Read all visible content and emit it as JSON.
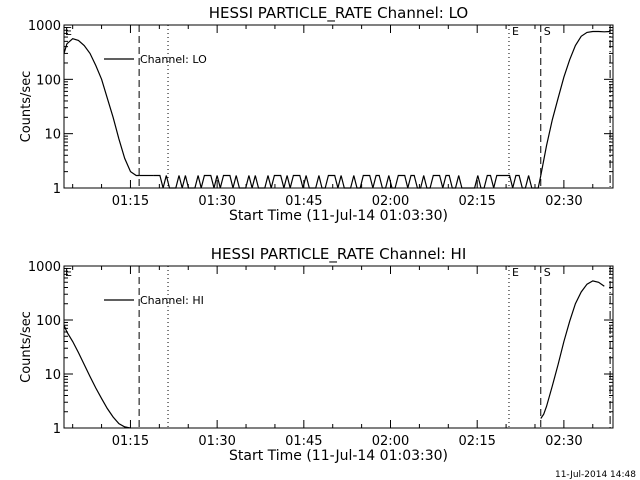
{
  "footer_timestamp": "11-Jul-2014 14:48",
  "chart_data": [
    {
      "type": "line",
      "title": "HESSI PARTICLE_RATE Channel: LO",
      "xlabel": "Start Time (11-Jul-14 01:03:30)",
      "ylabel": "Counts/sec",
      "yscale": "log",
      "ylim": [
        1,
        1000
      ],
      "xlim_minutes_after_midnight": [
        63.5,
        158.5
      ],
      "x_ticks": [
        "01:15",
        "01:30",
        "01:45",
        "02:00",
        "02:15",
        "02:30"
      ],
      "y_ticks": [
        "1",
        "10",
        "100",
        "1000"
      ],
      "legend": {
        "label": "Channel: LO",
        "placement": "top-left"
      },
      "markers": [
        {
          "label": "E",
          "time": "02:20.5",
          "style": "dotted"
        },
        {
          "label": "S",
          "time": "02:26",
          "style": "dashed"
        }
      ],
      "corner_marker": {
        "label": "E"
      },
      "vlines": [
        {
          "time": "01:16.5",
          "style": "dashed"
        },
        {
          "time": "01:21.5",
          "style": "dotted"
        },
        {
          "time": "02:20.5",
          "style": "dotted"
        },
        {
          "time": "02:26",
          "style": "dashed"
        },
        {
          "time": "02:38",
          "style": "dash-dot"
        }
      ],
      "series": [
        {
          "segments": [
            {
              "t": [
                63.5,
                64.0,
                65.0,
                66.0,
                67.0,
                68.0,
                69.0,
                70.0,
                71.0,
                72.0,
                73.0,
                74.0,
                75.0,
                76.0,
                76.5
              ],
              "v": [
                300,
                450,
                560,
                520,
                420,
                300,
                180,
                100,
                45,
                20,
                8,
                3.5,
                2,
                1.7,
                1.7
              ]
            },
            {
              "t": [
                76.5,
                79.0
              ],
              "v": [
                1.7,
                1.7
              ]
            },
            {
              "t": [
                146.0,
                147.0,
                148.0,
                149.0,
                150.0,
                151.0,
                152.0,
                153.0,
                154.0,
                155.0,
                156.0,
                157.0,
                158.0
              ],
              "v": [
                1.7,
                6,
                18,
                45,
                110,
                230,
                420,
                620,
                730,
                760,
                760,
                750,
                760
              ]
            }
          ],
          "flicker": {
            "t_start": 79.0,
            "t_end": 146.0,
            "levels": [
              1,
              1.7
            ]
          }
        }
      ]
    },
    {
      "type": "line",
      "title": "HESSI PARTICLE_RATE Channel: HI",
      "xlabel": "Start Time (11-Jul-14 01:03:30)",
      "ylabel": "Counts/sec",
      "yscale": "log",
      "ylim": [
        1,
        1000
      ],
      "xlim_minutes_after_midnight": [
        63.5,
        158.5
      ],
      "x_ticks": [
        "01:15",
        "01:30",
        "01:45",
        "02:00",
        "02:15",
        "02:30"
      ],
      "y_ticks": [
        "1",
        "10",
        "100",
        "1000"
      ],
      "legend": {
        "label": "Channel: HI",
        "placement": "top-left"
      },
      "markers": [
        {
          "label": "E",
          "time": "02:20.5",
          "style": "dotted"
        },
        {
          "label": "S",
          "time": "02:26",
          "style": "dashed"
        }
      ],
      "corner_marker": {
        "label": "E"
      },
      "vlines": [
        {
          "time": "01:16.5",
          "style": "dashed"
        },
        {
          "time": "01:21.5",
          "style": "dotted"
        },
        {
          "time": "02:20.5",
          "style": "dotted"
        },
        {
          "time": "02:26",
          "style": "dashed"
        },
        {
          "time": "02:38",
          "style": "dash-dot"
        }
      ],
      "series": [
        {
          "segments": [
            {
              "t": [
                63.5,
                64.0,
                65.0,
                66.0,
                67.0,
                68.0,
                69.0,
                70.0,
                71.0,
                72.0,
                73.0,
                74.0,
                75.0
              ],
              "v": [
                80,
                60,
                40,
                25,
                15,
                9,
                5.5,
                3.5,
                2.3,
                1.6,
                1.2,
                1.05,
                1.0
              ]
            },
            {
              "t": [
                146.0,
                146.5,
                147.0,
                148.0,
                149.0,
                150.0,
                151.0,
                152.0,
                153.0,
                154.0,
                155.0,
                156.0,
                157.0
              ],
              "v": [
                1.5,
                1.8,
                2.5,
                6,
                15,
                40,
                95,
                200,
                330,
                460,
                530,
                500,
                420
              ]
            }
          ]
        }
      ]
    }
  ]
}
